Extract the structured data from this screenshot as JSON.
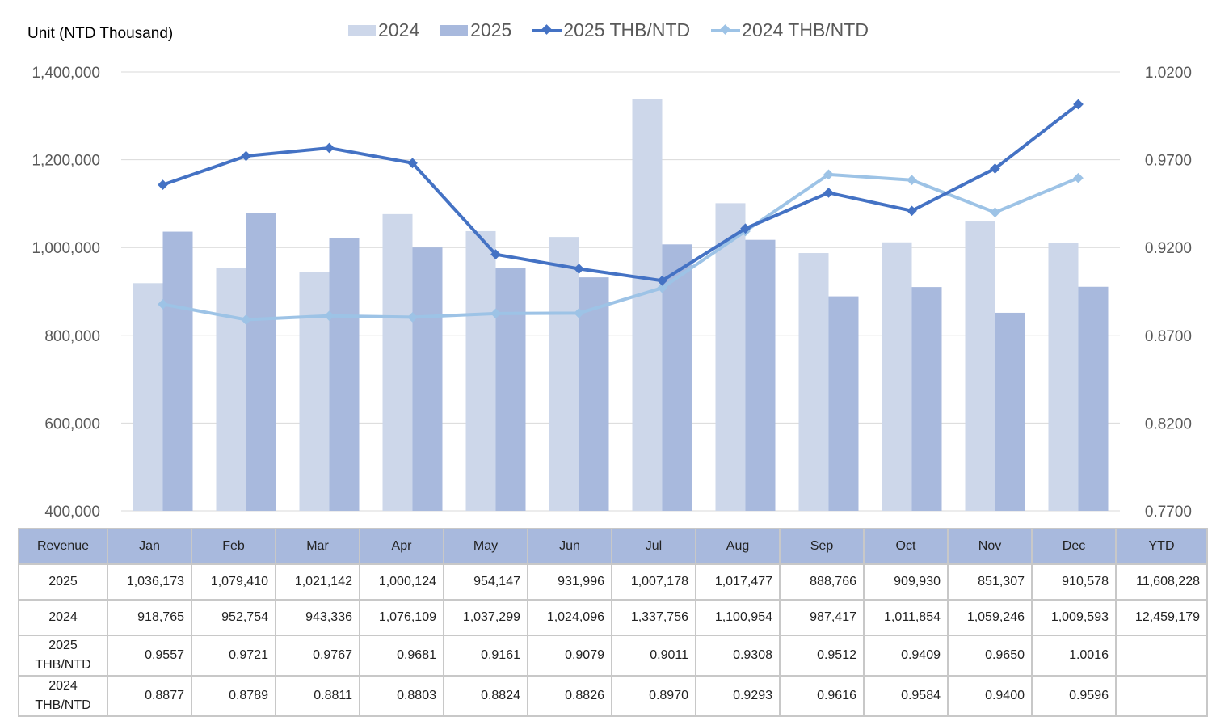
{
  "chart_data": {
    "type": "bar+line",
    "unit_label": "Unit (NTD  Thousand)",
    "categories": [
      "Jan",
      "Feb",
      "Mar",
      "Apr",
      "May",
      "Jun",
      "Jul",
      "Aug",
      "Sep",
      "Oct",
      "Nov",
      "Dec"
    ],
    "left_axis": {
      "min": 400000,
      "max": 1400000,
      "ticks": [
        "400,000",
        "600,000",
        "800,000",
        "1,000,000",
        "1,200,000",
        "1,400,000"
      ]
    },
    "right_axis": {
      "min": 0.77,
      "max": 1.02,
      "ticks": [
        "0.7700",
        "0.8200",
        "0.8700",
        "0.9200",
        "0.9700",
        "1.0200"
      ]
    },
    "grid": true,
    "legend_position": "top",
    "series": [
      {
        "name": "2024",
        "type": "bar",
        "axis": "left",
        "color": "#CDD7EA",
        "values": [
          918765,
          952754,
          943336,
          1076109,
          1037299,
          1024096,
          1337756,
          1100954,
          987417,
          1011854,
          1059246,
          1009593
        ]
      },
      {
        "name": "2025",
        "type": "bar",
        "axis": "left",
        "color": "#A8B9DD",
        "values": [
          1036173,
          1079410,
          1021142,
          1000124,
          954147,
          931996,
          1007178,
          1017477,
          888766,
          909930,
          851307,
          910578
        ]
      },
      {
        "name": "2025 THB/NTD",
        "type": "line",
        "axis": "right",
        "color": "#4472C4",
        "values": [
          0.9557,
          0.9721,
          0.9767,
          0.9681,
          0.9161,
          0.9079,
          0.9011,
          0.9308,
          0.9512,
          0.9409,
          0.965,
          1.0016
        ]
      },
      {
        "name": "2024 THB/NTD",
        "type": "line",
        "axis": "right",
        "color": "#9DC3E6",
        "values": [
          0.8877,
          0.8789,
          0.8811,
          0.8803,
          0.8824,
          0.8826,
          0.897,
          0.9293,
          0.9616,
          0.9584,
          0.94,
          0.9596
        ]
      }
    ]
  },
  "table": {
    "header": [
      "Revenue",
      "Jan",
      "Feb",
      "Mar",
      "Apr",
      "May",
      "Jun",
      "Jul",
      "Aug",
      "Sep",
      "Oct",
      "Nov",
      "Dec",
      "YTD"
    ],
    "rows": [
      {
        "label": "2025",
        "cells": [
          "1,036,173",
          "1,079,410",
          "1,021,142",
          "1,000,124",
          "954,147",
          "931,996",
          "1,007,178",
          "1,017,477",
          "888,766",
          "909,930",
          "851,307",
          "910,578",
          "11,608,228"
        ]
      },
      {
        "label": "2024",
        "cells": [
          "918,765",
          "952,754",
          "943,336",
          "1,076,109",
          "1,037,299",
          "1,024,096",
          "1,337,756",
          "1,100,954",
          "987,417",
          "1,011,854",
          "1,059,246",
          "1,009,593",
          "12,459,179"
        ]
      },
      {
        "label": "2025 THB/NTD",
        "cells": [
          "0.9557",
          "0.9721",
          "0.9767",
          "0.9681",
          "0.9161",
          "0.9079",
          "0.9011",
          "0.9308",
          "0.9512",
          "0.9409",
          "0.9650",
          "1.0016",
          ""
        ]
      },
      {
        "label": "2024 THB/NTD",
        "cells": [
          "0.8877",
          "0.8789",
          "0.8811",
          "0.8803",
          "0.8824",
          "0.8826",
          "0.8970",
          "0.9293",
          "0.9616",
          "0.9584",
          "0.9400",
          "0.9596",
          ""
        ]
      }
    ]
  }
}
